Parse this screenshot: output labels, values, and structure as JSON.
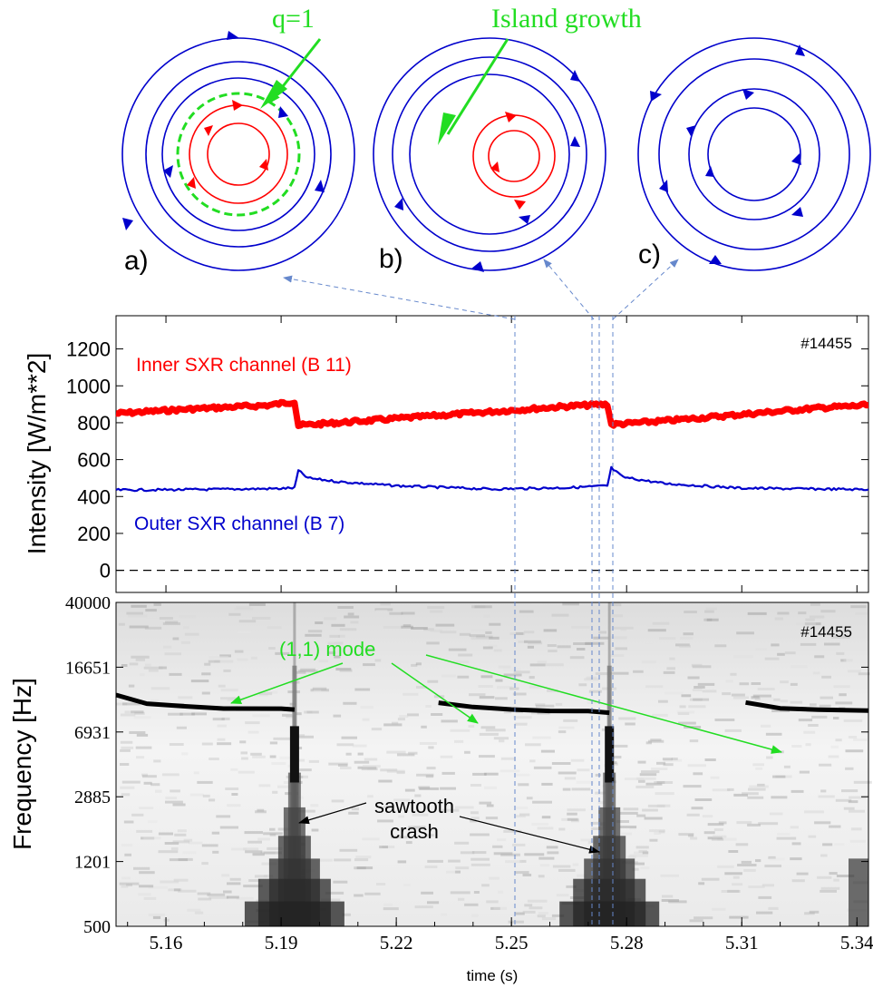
{
  "diagrams": {
    "a": {
      "label": "a)",
      "annotation": "q=1"
    },
    "b": {
      "label": "b)",
      "annotation": "Island growth"
    },
    "c": {
      "label": "c)"
    }
  },
  "colors": {
    "inner": "#ff0000",
    "outer": "#0000cc",
    "annotation": "#22dd22",
    "guide": "#6688cc",
    "axis": "#000000"
  },
  "chart_data": [
    {
      "type": "line",
      "shot_label": "#14455",
      "ylabel": "Intensity [W/m**2]",
      "yticks": [
        0,
        200,
        400,
        600,
        800,
        1000,
        1200
      ],
      "ylim": [
        -120,
        1380
      ],
      "xlim": [
        5.147,
        5.343
      ],
      "reference_line": 0,
      "series": [
        {
          "name": "Inner SXR channel (B 11)",
          "color": "#ff0000",
          "x": [
            5.147,
            5.167,
            5.187,
            5.1935,
            5.1945,
            5.205,
            5.225,
            5.245,
            5.265,
            5.275,
            5.276,
            5.29,
            5.31,
            5.33,
            5.343
          ],
          "y": [
            850,
            875,
            895,
            915,
            785,
            800,
            830,
            860,
            890,
            900,
            790,
            810,
            845,
            880,
            895
          ]
        },
        {
          "name": "Outer SXR channel (B 7)",
          "color": "#0000cc",
          "x": [
            5.147,
            5.17,
            5.19,
            5.1935,
            5.1945,
            5.197,
            5.205,
            5.22,
            5.245,
            5.265,
            5.275,
            5.276,
            5.279,
            5.29,
            5.31,
            5.343
          ],
          "y": [
            435,
            438,
            443,
            447,
            540,
            500,
            480,
            458,
            440,
            448,
            458,
            555,
            505,
            470,
            445,
            438
          ]
        }
      ]
    },
    {
      "type": "heatmap",
      "shot_label": "#14455",
      "ylabel": "Frequency [Hz]",
      "xlabel": "time  (s)",
      "xticks": [
        5.16,
        5.19,
        5.22,
        5.25,
        5.28,
        5.31,
        5.34
      ],
      "xticklabels": [
        "5.16",
        "5.19",
        "5.22",
        "5.25",
        "5.28",
        "5.31",
        "5.34"
      ],
      "yticks": [
        "40000",
        "16651",
        "6931",
        "2885",
        "1201",
        "500"
      ],
      "ylim": [
        500,
        40000
      ],
      "log_scale": true,
      "xlim": [
        5.147,
        5.343
      ],
      "mode_traces": [
        {
          "x": [
            5.147,
            5.155,
            5.165,
            5.175,
            5.19,
            5.1935
          ],
          "y_hz": [
            11500,
            10000,
            9700,
            9500,
            9400,
            9300
          ]
        },
        {
          "x": [
            5.231,
            5.24,
            5.25,
            5.26,
            5.27,
            5.2755
          ],
          "y_hz": [
            10200,
            9700,
            9300,
            9200,
            9100,
            9000
          ]
        },
        {
          "x": [
            5.311,
            5.32,
            5.33,
            5.343
          ],
          "y_hz": [
            10300,
            9700,
            9400,
            9300
          ]
        }
      ],
      "crash_times": [
        5.1935,
        5.2755
      ],
      "annotations": [
        {
          "text": "(1,1) mode"
        },
        {
          "text_lines": [
            "sawtooth",
            "crash"
          ]
        }
      ]
    }
  ]
}
